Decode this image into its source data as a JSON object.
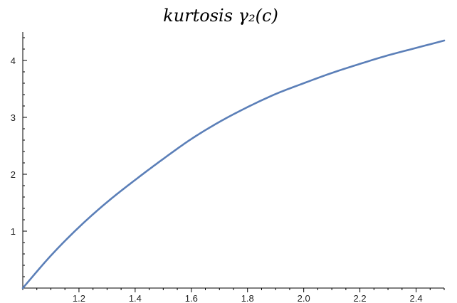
{
  "chart_data": {
    "type": "line",
    "title": "kurtosis γ₂(c)",
    "xlabel": "",
    "ylabel": "",
    "xlim": [
      1.0,
      2.5
    ],
    "ylim": [
      0,
      4.5
    ],
    "x_ticks": [
      1.2,
      1.4,
      1.6,
      1.8,
      2.0,
      2.2,
      2.4
    ],
    "x_tick_labels": [
      "1.2",
      "1.4",
      "1.6",
      "1.8",
      "2.0",
      "2.2",
      "2.4"
    ],
    "y_ticks": [
      1,
      2,
      3,
      4
    ],
    "y_tick_labels": [
      "1",
      "2",
      "3",
      "4"
    ],
    "grid": false,
    "series": [
      {
        "color": "#5b7fb8",
        "x": [
          1.0,
          1.1,
          1.2,
          1.3,
          1.4,
          1.5,
          1.6,
          1.7,
          1.8,
          1.9,
          2.0,
          2.1,
          2.2,
          2.3,
          2.4,
          2.5
        ],
        "y": [
          0.0,
          0.57,
          1.07,
          1.51,
          1.9,
          2.27,
          2.62,
          2.92,
          3.18,
          3.41,
          3.6,
          3.78,
          3.94,
          4.09,
          4.22,
          4.35
        ]
      }
    ]
  }
}
